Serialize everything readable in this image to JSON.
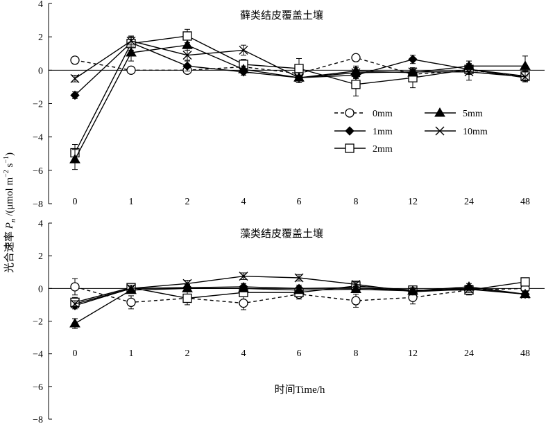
{
  "figure": {
    "ylabel": "光合速率 Pn /(μmol m⁻² s⁻¹)",
    "ylabel_prefix": "光合速率 ",
    "ylabel_var": "P",
    "ylabel_sub": "n",
    "ylabel_unit": " /(μmol m",
    "ylabel_exp1": "−2",
    "ylabel_mid": " s",
    "ylabel_exp2": "−1",
    "ylabel_close": ")",
    "xlabel": "时间Time/h"
  },
  "legend": [
    {
      "label": "0mm",
      "series": 0
    },
    {
      "label": "5mm",
      "series": 3
    },
    {
      "label": "1mm",
      "series": 1
    },
    {
      "label": "10mm",
      "series": 4
    },
    {
      "label": "2mm",
      "series": 2
    }
  ],
  "chart_data": [
    {
      "type": "line",
      "title": "藓类结皮覆盖土壤",
      "categories": [
        "0",
        "1",
        "2",
        "4",
        "6",
        "8",
        "12",
        "24",
        "48"
      ],
      "ylim": [
        -8,
        4
      ],
      "yticks": [
        -8,
        -6,
        -4,
        -2,
        0,
        2,
        4
      ],
      "series": [
        {
          "name": "0mm",
          "marker": "circle-open",
          "dash": true,
          "values": [
            0.6,
            0.0,
            0.0,
            0.2,
            -0.2,
            0.75,
            -0.25,
            0.0,
            -0.35
          ],
          "errors": [
            0,
            0,
            0,
            0.2,
            0.3,
            0,
            0,
            0.2,
            0.2
          ]
        },
        {
          "name": "1mm",
          "marker": "diamond-filled",
          "dash": false,
          "values": [
            -1.5,
            1.65,
            0.25,
            -0.1,
            -0.45,
            -0.3,
            0.65,
            0.05,
            -0.45
          ],
          "errors": [
            0.2,
            0.3,
            0.3,
            0.2,
            0.3,
            0.2,
            0.25,
            0.2,
            0.2
          ]
        },
        {
          "name": "2mm",
          "marker": "square-open",
          "dash": false,
          "values": [
            -4.95,
            1.6,
            2.05,
            0.35,
            0.1,
            -0.85,
            -0.45,
            0.05,
            -0.35
          ],
          "errors": [
            0.5,
            0.4,
            0.4,
            0.3,
            0.6,
            0.7,
            0.6,
            0.3,
            0.3
          ]
        },
        {
          "name": "5mm",
          "marker": "triangle-filled",
          "dash": false,
          "values": [
            -5.35,
            1.05,
            1.5,
            0.05,
            -0.45,
            -0.05,
            -0.15,
            0.25,
            0.25
          ],
          "errors": [
            0.6,
            0.5,
            0.3,
            0.2,
            0.3,
            0.3,
            0.2,
            0.3,
            0.6
          ]
        },
        {
          "name": "10mm",
          "marker": "cross",
          "dash": false,
          "values": [
            -0.5,
            1.75,
            0.9,
            1.2,
            -0.45,
            -0.15,
            -0.1,
            -0.1,
            -0.4
          ],
          "errors": [
            0.2,
            0.3,
            0.3,
            0.3,
            0.3,
            0.3,
            0.2,
            0.5,
            0.3
          ]
        }
      ]
    },
    {
      "type": "line",
      "title": "藻类结皮覆盖土壤",
      "categories": [
        "0",
        "1",
        "2",
        "4",
        "6",
        "8",
        "12",
        "24",
        "48"
      ],
      "ylim": [
        -8,
        4
      ],
      "yticks": [
        -8,
        -6,
        -4,
        -2,
        0,
        2,
        4
      ],
      "series": [
        {
          "name": "0mm",
          "marker": "circle-open",
          "dash": true,
          "values": [
            0.1,
            -0.85,
            -0.6,
            -0.9,
            -0.35,
            -0.75,
            -0.55,
            -0.1,
            0.0
          ],
          "errors": [
            0.5,
            0.4,
            0.4,
            0.4,
            0.3,
            0.4,
            0.4,
            0.3,
            0.2
          ]
        },
        {
          "name": "1mm",
          "marker": "diamond-filled",
          "dash": false,
          "values": [
            -1.05,
            0.0,
            0.05,
            0.1,
            0.0,
            0.05,
            -0.15,
            0.0,
            -0.35
          ],
          "errors": [
            0.2,
            0.2,
            0.2,
            0.2,
            0.2,
            0.2,
            0.2,
            0.2,
            0.2
          ]
        },
        {
          "name": "2mm",
          "marker": "square-open",
          "dash": false,
          "values": [
            -0.85,
            0.05,
            -0.6,
            -0.25,
            -0.25,
            0.15,
            -0.1,
            -0.1,
            0.4
          ],
          "errors": [
            0.3,
            0.2,
            0.2,
            0.2,
            0.2,
            0.2,
            0.2,
            0.2,
            0.2
          ]
        },
        {
          "name": "5mm",
          "marker": "triangle-filled",
          "dash": false,
          "values": [
            -2.15,
            -0.1,
            0.0,
            0.0,
            -0.1,
            -0.05,
            -0.15,
            0.1,
            -0.35
          ],
          "errors": [
            0.3,
            0.2,
            0.2,
            0.2,
            0.2,
            0.2,
            0.2,
            0.2,
            0.2
          ]
        },
        {
          "name": "10mm",
          "marker": "cross",
          "dash": false,
          "values": [
            -0.95,
            0.0,
            0.3,
            0.75,
            0.65,
            0.25,
            -0.2,
            -0.05,
            -0.35
          ],
          "errors": [
            0.2,
            0.2,
            0.2,
            0.2,
            0.2,
            0.2,
            0.2,
            0.2,
            0.2
          ]
        }
      ]
    }
  ]
}
